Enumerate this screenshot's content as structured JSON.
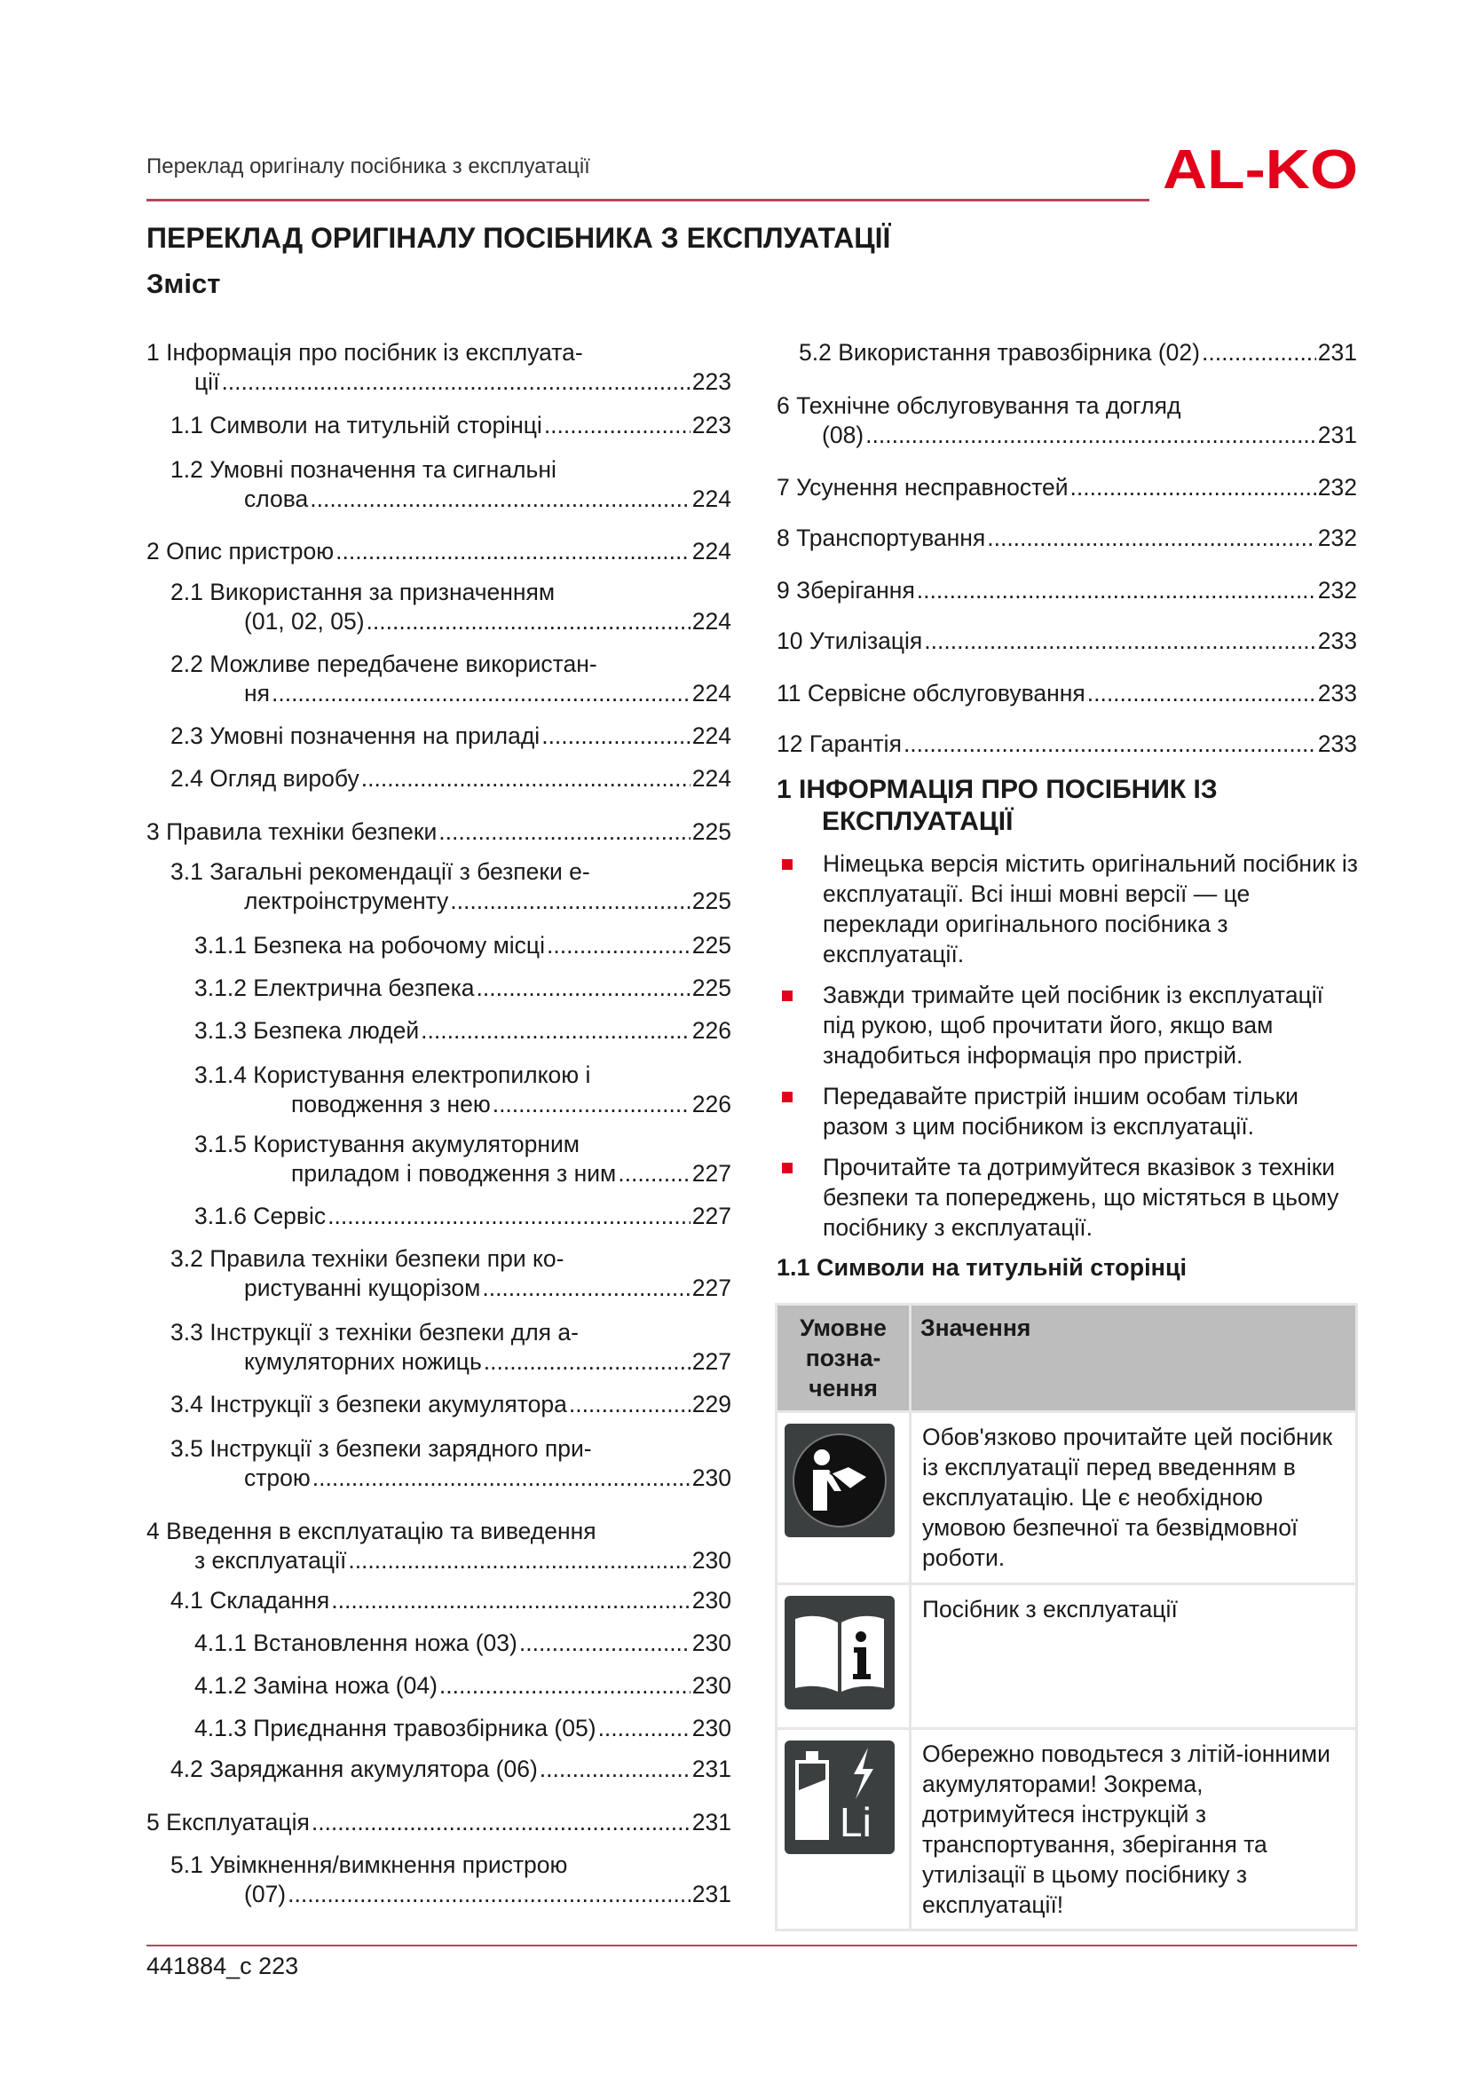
{
  "header": {
    "running_title": "Переклад оригіналу посібника з експлуатації",
    "logo_text": "AL-KO",
    "accent": "#e2001a"
  },
  "title": "ПЕРЕКЛАД ОРИГІНАЛУ ПОСІБНИКА З ЕКСПЛУАТАЦІЇ",
  "toc_heading": "Зміст",
  "toc_left": [
    {
      "lines": [
        "1 Інформація про посібник із експлуата-"
      ],
      "last": "ції",
      "page": "223"
    },
    {
      "lines": [],
      "last": "1.1 Символи на титульній сторінці",
      "page": "223"
    },
    {
      "lines": [
        "1.2 Умовні позначення та сигнальні"
      ],
      "last": "слова",
      "page": "224"
    },
    {
      "lines": [],
      "last": "2 Опис пристрою",
      "page": "224"
    },
    {
      "lines": [
        "2.1 Використання за призначенням"
      ],
      "last": "(01, 02, 05)",
      "page": "224"
    },
    {
      "lines": [
        "2.2 Можливе передбачене використан-"
      ],
      "last": "ня",
      "page": "224"
    },
    {
      "lines": [],
      "last": "2.3 Умовні позначення на приладі",
      "page": "224"
    },
    {
      "lines": [],
      "last": "2.4 Огляд виробу",
      "page": "224"
    },
    {
      "lines": [],
      "last": "3 Правила техніки безпеки",
      "page": "225"
    },
    {
      "lines": [
        "3.1 Загальні рекомендації з безпеки е-"
      ],
      "last": "лектроінструменту",
      "page": "225"
    },
    {
      "lines": [],
      "last": "3.1.1 Безпека на робочому місці",
      "page": "225"
    },
    {
      "lines": [],
      "last": "3.1.2 Електрична безпека",
      "page": "225"
    },
    {
      "lines": [],
      "last": "3.1.3 Безпека людей",
      "page": "226"
    },
    {
      "lines": [
        "3.1.4 Користування електропилкою і"
      ],
      "last": "поводження з нею",
      "page": "226"
    },
    {
      "lines": [
        "3.1.5 Користування акумуляторним"
      ],
      "last": "приладом і поводження з ним",
      "page": "227"
    },
    {
      "lines": [],
      "last": "3.1.6 Сервіс",
      "page": "227"
    },
    {
      "lines": [
        "3.2 Правила техніки безпеки при ко-"
      ],
      "last": "ристуванні кущорізом",
      "page": "227"
    },
    {
      "lines": [
        "3.3 Інструкції з техніки безпеки для а-"
      ],
      "last": "кумуляторних ножиць",
      "page": "227"
    },
    {
      "lines": [],
      "last": "3.4 Інструкції з безпеки акумулятора",
      "page": "229"
    },
    {
      "lines": [
        "3.5 Інструкції з безпеки зарядного при-"
      ],
      "last": "строю",
      "page": "230"
    },
    {
      "lines": [
        "4 Введення в експлуатацію та виведення"
      ],
      "last": "з експлуатації",
      "page": "230"
    },
    {
      "lines": [],
      "last": "4.1 Складання",
      "page": "230"
    },
    {
      "lines": [],
      "last": "4.1.1 Встановлення ножа (03)",
      "page": "230"
    },
    {
      "lines": [],
      "last": "4.1.2 Заміна ножа (04)",
      "page": "230"
    },
    {
      "lines": [],
      "last": "4.1.3 Приєднання травозбірника (05)",
      "page": "230"
    },
    {
      "lines": [],
      "last": "4.2 Заряджання акумулятора (06)",
      "page": "231"
    },
    {
      "lines": [],
      "last": "5 Експлуатація",
      "page": "231"
    },
    {
      "lines": [
        "5.1 Увімкнення/вимкнення пристрою"
      ],
      "last": "(07)",
      "page": "231"
    }
  ],
  "toc_right": [
    {
      "lines": [],
      "last": "5.2 Використання травозбірника (02)",
      "page": "231"
    },
    {
      "lines": [
        "6 Технічне обслуговування та догляд"
      ],
      "last": "(08)",
      "page": "231"
    },
    {
      "lines": [],
      "last": "7 Усунення несправностей",
      "page": "232"
    },
    {
      "lines": [],
      "last": "8 Транспортування",
      "page": "232"
    },
    {
      "lines": [],
      "last": "9 Зберігання",
      "page": "232"
    },
    {
      "lines": [],
      "last": "10 Утилізація",
      "page": "233"
    },
    {
      "lines": [],
      "last": "11 Сервісне обслуговування",
      "page": "233"
    },
    {
      "lines": [],
      "last": "12 Гарантія",
      "page": "233"
    }
  ],
  "section1": {
    "line1": "1 ІНФОРМАЦІЯ ПРО ПОСІБНИК ІЗ",
    "line2": "ЕКСПЛУАТАЦІЇ",
    "bullets": [
      "Німецька версія містить оригінальний посібник із експлуатації. Всі інші мовні версії — це переклади оригінального посібника з експлуатації.",
      "Завжди тримайте цей посібник із експлуатації під рукою, щоб прочитати його, якщо вам знадобиться інформація про пристрій.",
      "Передавайте пристрій іншим особам тільки разом з цим посібником із експлуатації.",
      "Прочитайте та дотримуйтеся вказівок з техніки безпеки та попереджень, що містяться в цьому посібнику з експлуатації."
    ]
  },
  "section11": {
    "heading": "1.1 Символи на титульній сторінці",
    "col_symbol": "Умовне позна-чення",
    "col_meaning": "Значення",
    "rows": [
      {
        "icon": "read-manual-icon",
        "text": "Обов'язково прочитайте цей посібник із експлуатації перед введенням в експлуатацію. Це є необхідною умовою безпечної та безвідмовної роботи."
      },
      {
        "icon": "manual-info-icon",
        "text": "Посібник з експлуатації"
      },
      {
        "icon": "li-ion-battery-icon",
        "text": "Обережно поводьтеся з літій-іонними акумуляторами! Зокрема, дотримуйтеся інструкцій з транспортування, зберігання та утилізації в цьому посібнику з експлуатації!",
        "icon_label": "Li"
      }
    ]
  },
  "footer": {
    "doc_page": "441884_c 223"
  }
}
